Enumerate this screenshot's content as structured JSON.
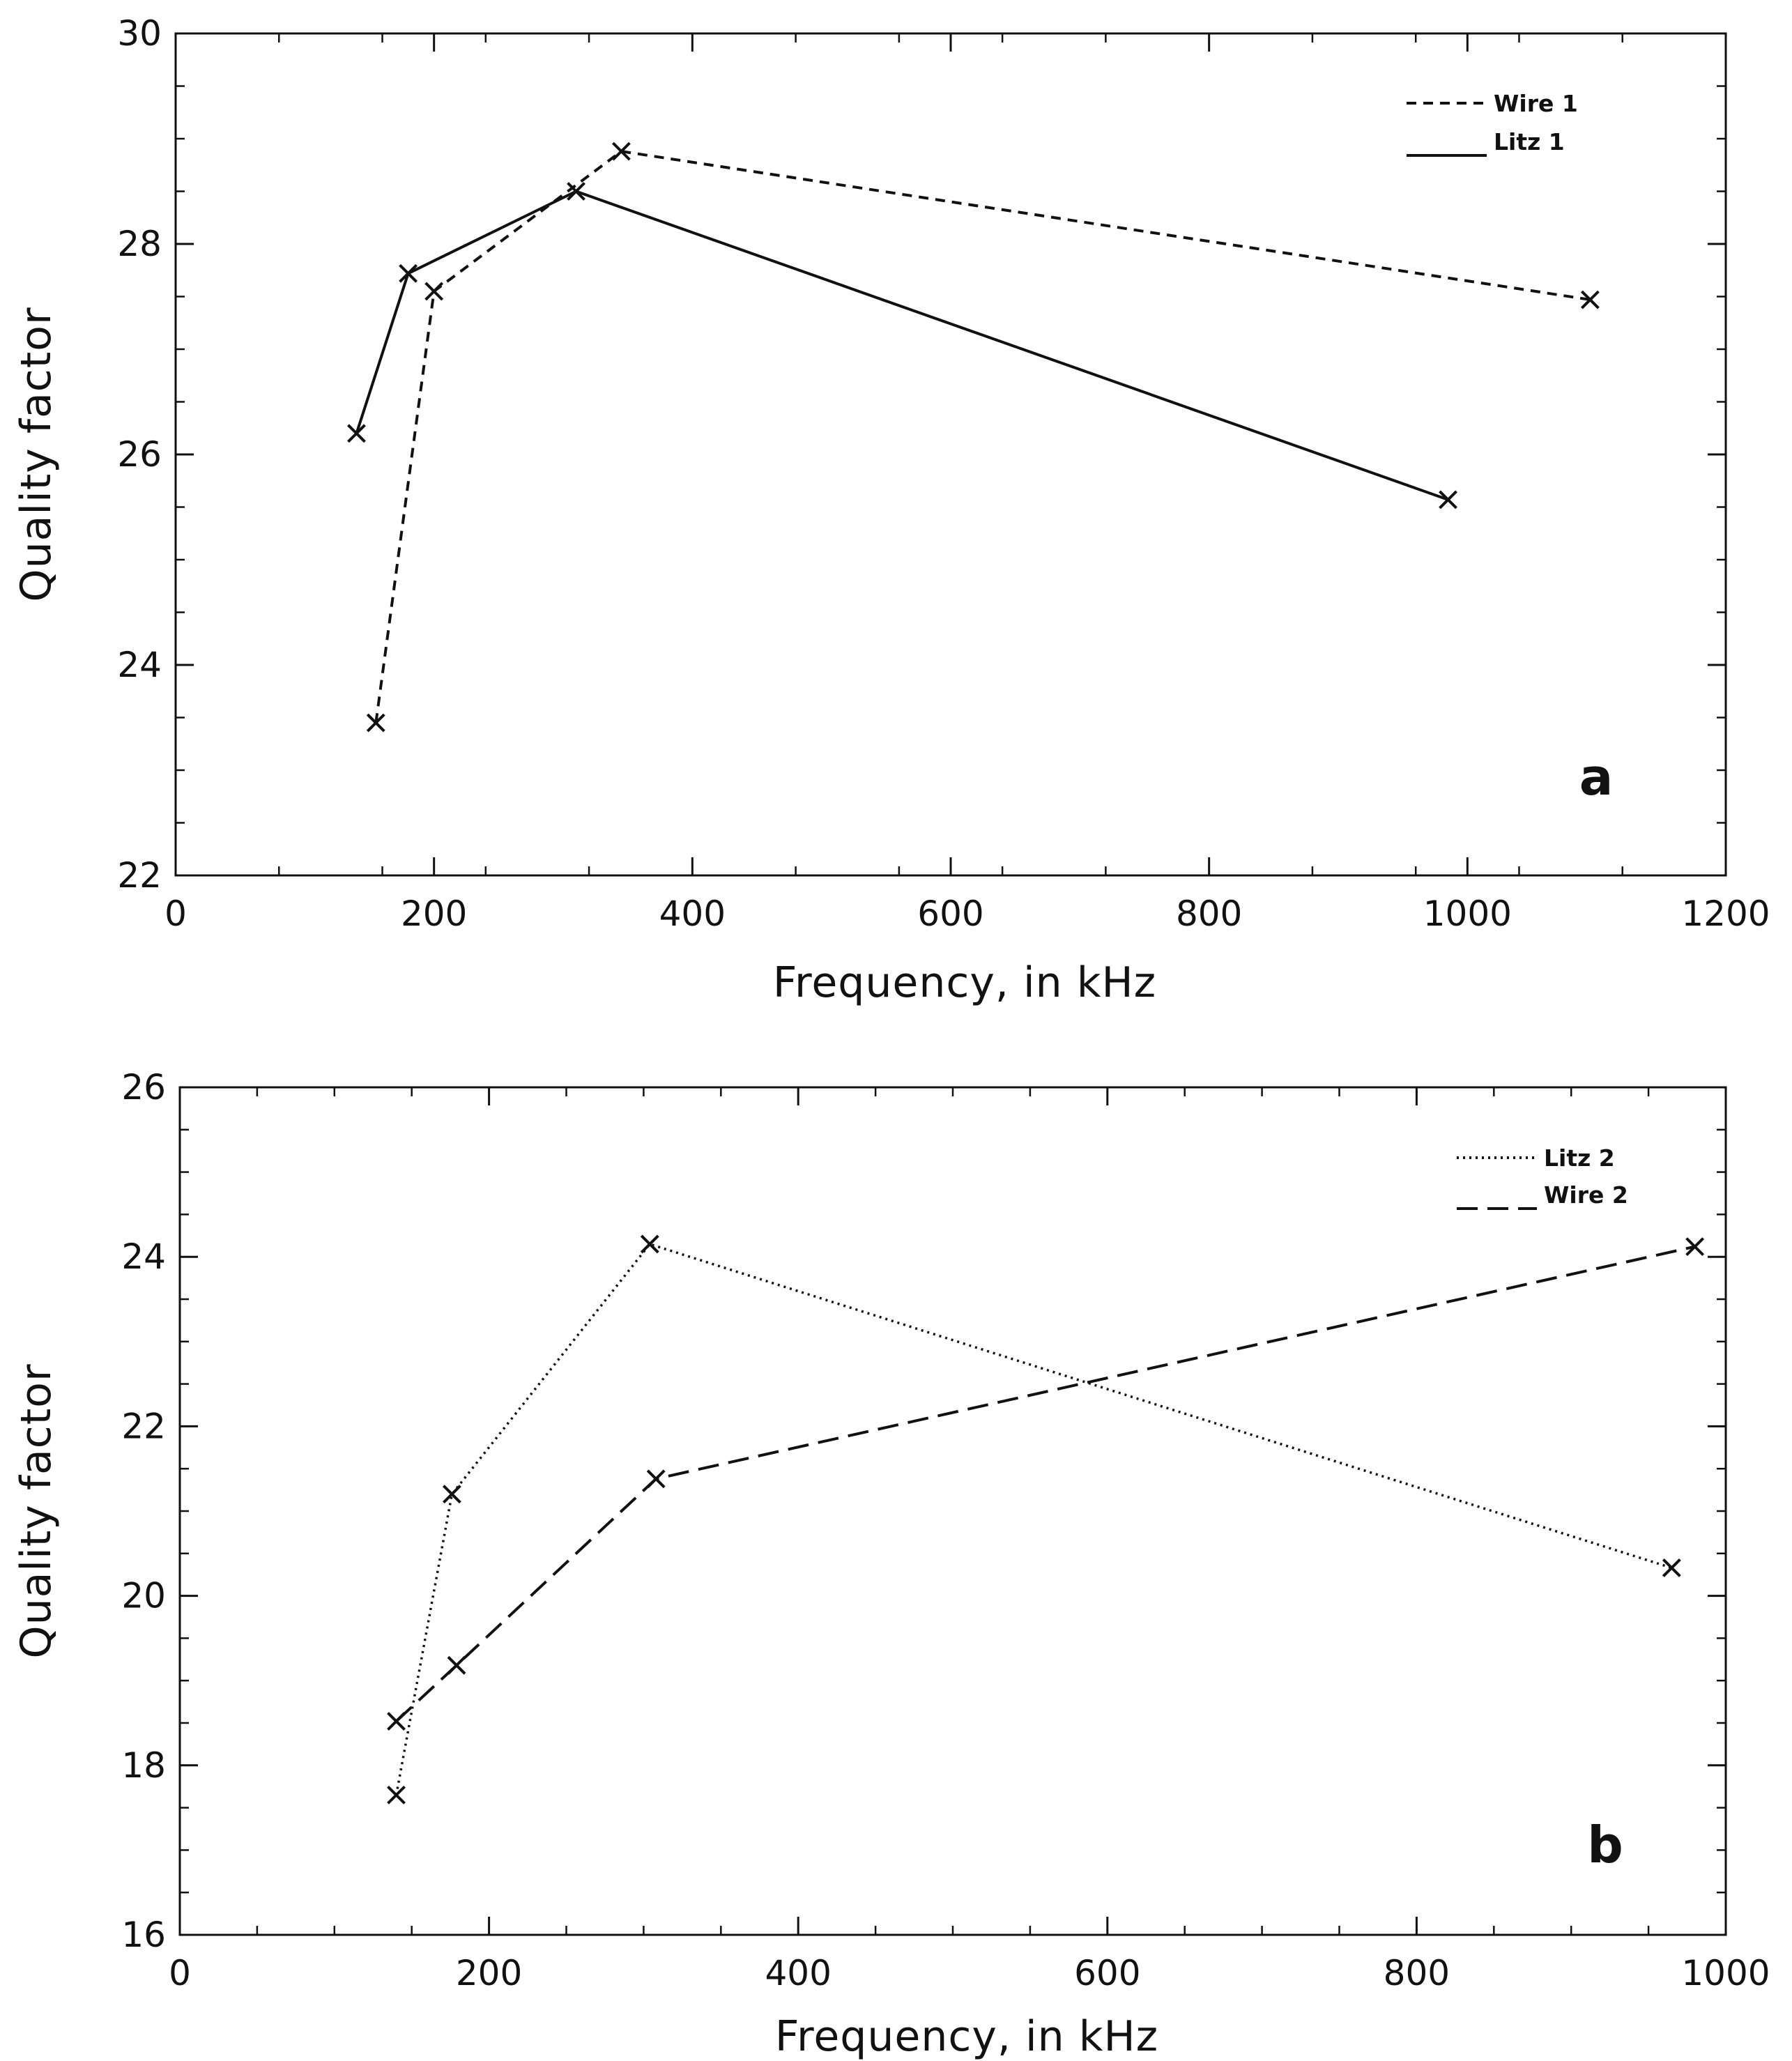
{
  "chart_data": [
    {
      "type": "line",
      "panel_label": "a",
      "title": "",
      "xlabel": "Frequency, in kHz",
      "ylabel": "Quality factor",
      "xlim": [
        0,
        1200
      ],
      "ylim": [
        22,
        30
      ],
      "xticks": [
        0,
        200,
        400,
        600,
        800,
        1000,
        1200
      ],
      "xtick_labels": [
        "0",
        "200",
        "400",
        "600",
        "800",
        "1000",
        "1200"
      ],
      "yticks": [
        22,
        24,
        26,
        28,
        30
      ],
      "ytick_labels": [
        "22",
        "24",
        "26",
        "28",
        "30"
      ],
      "x_minor_step": 80,
      "y_minor_step": 0.5,
      "grid": false,
      "legend_position": "top-right",
      "marker": "x",
      "series": [
        {
          "name": "Wire 1",
          "style": "short-dash",
          "x": [
            155,
            200,
            345,
            1095
          ],
          "y": [
            23.45,
            27.55,
            28.88,
            27.47
          ]
        },
        {
          "name": "Litz 1",
          "style": "solid",
          "x": [
            140,
            180,
            310,
            985
          ],
          "y": [
            26.2,
            27.72,
            28.5,
            25.57
          ]
        }
      ]
    },
    {
      "type": "line",
      "panel_label": "b",
      "title": "",
      "xlabel": "Frequency, in kHz",
      "ylabel": "Quality factor",
      "xlim": [
        0,
        1000
      ],
      "ylim": [
        16,
        26
      ],
      "xticks": [
        0,
        200,
        400,
        600,
        800,
        1000
      ],
      "xtick_labels": [
        "0",
        "200",
        "400",
        "600",
        "800",
        "1000"
      ],
      "yticks": [
        16,
        18,
        20,
        22,
        24,
        26
      ],
      "ytick_labels": [
        "16",
        "18",
        "20",
        "22",
        "24",
        "26"
      ],
      "x_minor_step": 50,
      "y_minor_step": 0.5,
      "grid": false,
      "legend_position": "top-right",
      "marker": "x",
      "series": [
        {
          "name": "Litz 2",
          "style": "dotted",
          "x": [
            140,
            176,
            304,
            965
          ],
          "y": [
            17.65,
            21.2,
            24.15,
            20.33
          ]
        },
        {
          "name": "Wire 2",
          "style": "long-dash",
          "x": [
            140,
            179,
            308,
            980
          ],
          "y": [
            18.52,
            19.18,
            21.38,
            24.12
          ]
        }
      ]
    }
  ]
}
